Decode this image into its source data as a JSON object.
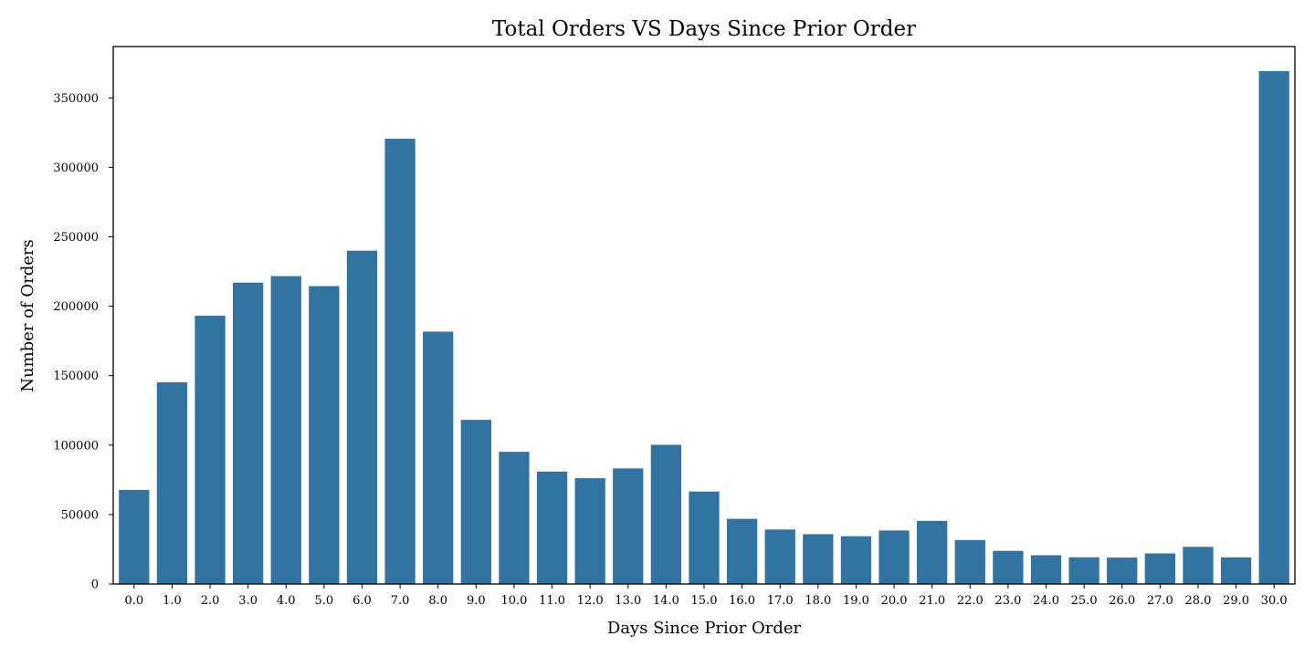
{
  "chart_data": {
    "type": "bar",
    "title": "Total Orders VS Days Since Prior Order",
    "xlabel": "Days Since Prior Order",
    "ylabel": "Number of Orders",
    "ylim": [
      0,
      387000
    ],
    "yticks": [
      0,
      50000,
      100000,
      150000,
      200000,
      250000,
      300000,
      350000
    ],
    "grid": false,
    "legend": "none",
    "bar_color": "#3274a1",
    "categories": [
      "0.0",
      "1.0",
      "2.0",
      "3.0",
      "4.0",
      "5.0",
      "6.0",
      "7.0",
      "8.0",
      "9.0",
      "10.0",
      "11.0",
      "12.0",
      "13.0",
      "14.0",
      "15.0",
      "16.0",
      "17.0",
      "18.0",
      "19.0",
      "20.0",
      "21.0",
      "22.0",
      "23.0",
      "24.0",
      "25.0",
      "26.0",
      "27.0",
      "28.0",
      "29.0",
      "30.0"
    ],
    "values": [
      67755,
      145247,
      193206,
      217005,
      221696,
      214503,
      240013,
      320608,
      181717,
      118188,
      95186,
      80970,
      76200,
      83214,
      100230,
      66579,
      46941,
      39245,
      35881,
      34418,
      38527,
      45470,
      31665,
      23885,
      20712,
      19234,
      19016,
      22013,
      26777,
      19191,
      369323
    ]
  }
}
